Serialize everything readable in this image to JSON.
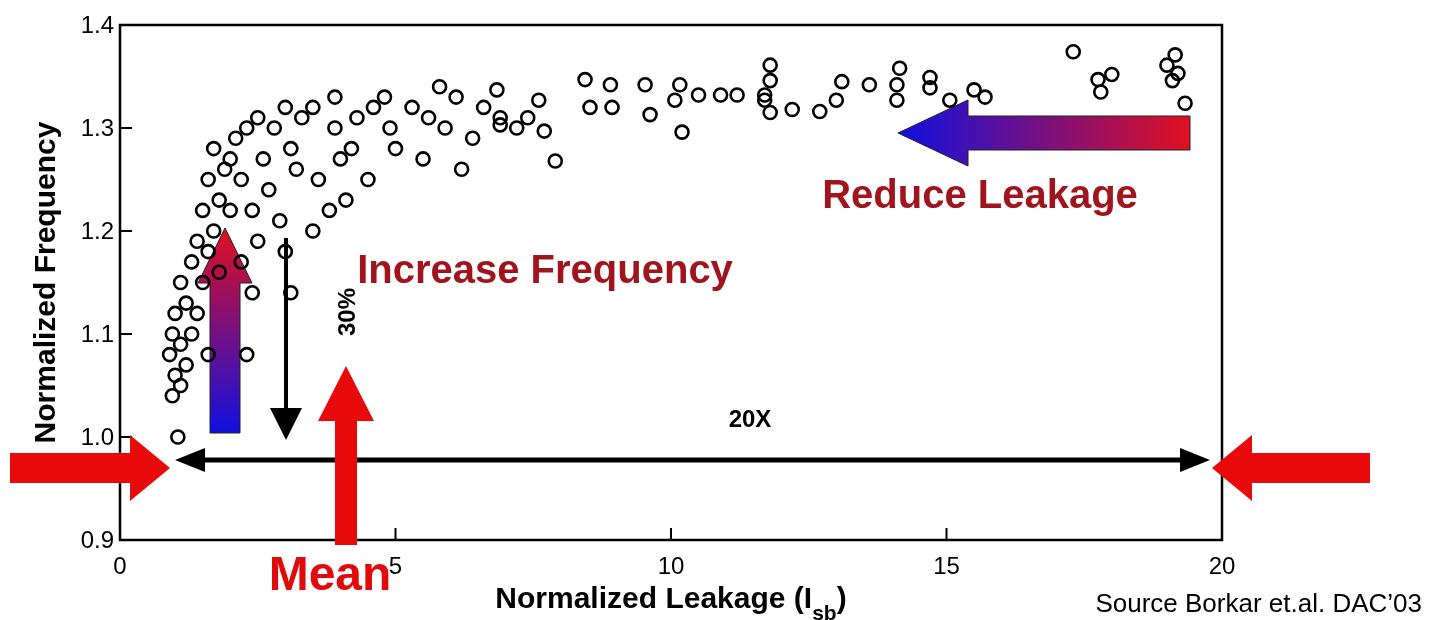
{
  "chart_data": {
    "type": "scatter",
    "xlabel": "Normalized Leakage (I$_{sb}$)",
    "ylabel": "Normalized Frequency",
    "xlim": [
      0,
      20
    ],
    "xticks": [
      0,
      5,
      10,
      15,
      20
    ],
    "ylim": [
      0.9,
      1.4
    ],
    "yticks": [
      {
        "value": 0.9,
        "label": "0.9"
      },
      {
        "value": 1.0,
        "label": "1.0"
      },
      1.1,
      1.2,
      1.3,
      1.4
    ],
    "marker": "circle",
    "annotations": [
      "Reduce Leakage",
      "Increase Frequency",
      "30%",
      "20X",
      "Mean",
      "Source Borkar et.al. DAC’03"
    ],
    "series": [
      {
        "color": "#000000",
        "x": [
          1.05,
          0.95,
          1.0,
          0.9,
          1.1,
          1.2,
          0.95,
          1.1,
          1.3,
          1.0,
          1.2,
          1.4,
          1.5,
          1.1,
          1.3,
          1.6,
          1.4,
          1.7,
          1.5,
          1.8,
          1.6,
          1.9,
          1.7,
          2.0,
          2.1,
          2.3,
          2.5,
          2.2,
          2.4,
          2.6,
          2.8,
          3.0,
          2.7,
          3.1,
          3.3,
          3.5,
          3.2,
          2.9,
          2.5,
          2.2,
          2.4,
          3.1,
          3.5,
          3.8,
          4.1,
          4.5,
          4.2,
          3.9,
          4.3,
          4.6,
          4.9,
          5.0,
          5.3,
          5.6,
          5.5,
          5.9,
          6.1,
          6.4,
          6.2,
          4.0,
          3.6,
          3.0,
          2.0,
          1.8,
          1.6,
          3.9,
          4.8,
          5.8,
          6.6,
          6.9,
          7.2,
          7.4,
          2.3,
          6.84,
          6.9,
          7.6,
          7.7,
          7.9,
          8.44,
          8.9,
          8.53,
          8.93,
          9.53,
          9.62,
          10.07,
          10.16,
          10.2,
          10.5,
          10.9,
          11.2,
          11.7,
          11.8,
          11.8,
          11.7,
          11.8,
          12.2,
          12.7,
          13.0,
          13.1,
          13.6,
          14.1,
          14.15,
          14.1,
          14.7,
          14.7,
          15.06,
          15.5,
          15.7,
          17.3,
          17.75,
          18.0,
          17.8,
          19.0,
          19.15,
          19.1,
          19.33,
          19.2
        ],
        "values": [
          1.0,
          1.04,
          1.06,
          1.08,
          1.05,
          1.07,
          1.1,
          1.09,
          1.1,
          1.12,
          1.13,
          1.12,
          1.15,
          1.15,
          1.17,
          1.18,
          1.19,
          1.2,
          1.22,
          1.23,
          1.25,
          1.26,
          1.28,
          1.27,
          1.29,
          1.3,
          1.31,
          1.25,
          1.22,
          1.27,
          1.3,
          1.32,
          1.24,
          1.28,
          1.31,
          1.32,
          1.26,
          1.21,
          1.19,
          1.17,
          1.14,
          1.14,
          1.2,
          1.22,
          1.23,
          1.25,
          1.28,
          1.3,
          1.31,
          1.32,
          1.3,
          1.28,
          1.32,
          1.31,
          1.27,
          1.3,
          1.33,
          1.29,
          1.26,
          1.27,
          1.25,
          1.18,
          1.22,
          1.16,
          1.08,
          1.33,
          1.33,
          1.34,
          1.32,
          1.31,
          1.3,
          1.31,
          1.08,
          1.337,
          1.303,
          1.327,
          1.297,
          1.268,
          1.347,
          1.342,
          1.32,
          1.32,
          1.342,
          1.313,
          1.327,
          1.342,
          1.296,
          1.332,
          1.332,
          1.332,
          1.332,
          1.361,
          1.346,
          1.327,
          1.315,
          1.318,
          1.316,
          1.327,
          1.345,
          1.342,
          1.342,
          1.358,
          1.327,
          1.349,
          1.339,
          1.327,
          1.337,
          1.33,
          1.374,
          1.347,
          1.352,
          1.335,
          1.361,
          1.371,
          1.346,
          1.324,
          1.353
        ]
      }
    ]
  }
}
